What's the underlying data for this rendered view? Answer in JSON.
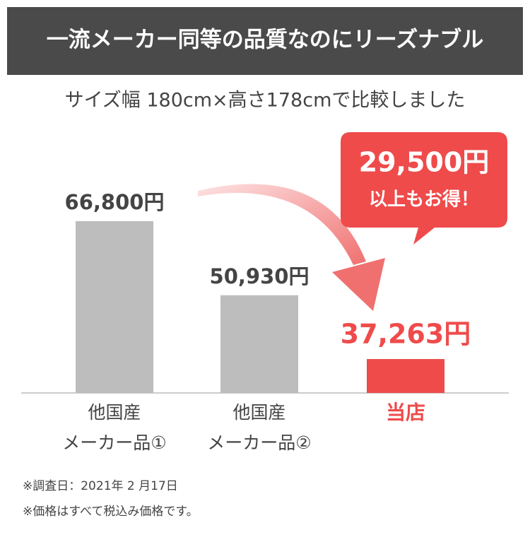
{
  "chart_data": {
    "type": "bar",
    "title": "一流メーカー同等の品質なのにリーズナブル",
    "subtitle": "サイズ幅 180cm×高さ178cmで比較しました",
    "categories": [
      [
        "他国産",
        "メーカー品①"
      ],
      [
        "他国産",
        "メーカー品②"
      ],
      [
        "当店"
      ]
    ],
    "values": [
      66800,
      50930,
      37263
    ],
    "value_labels": [
      "66,800円",
      "50,930円",
      "37,263円"
    ],
    "colors": [
      "#bdbdbd",
      "#bdbdbd",
      "#ef4b4b"
    ],
    "ylim": [
      30000,
      68000
    ],
    "annotations": [
      "29,500円",
      "以上もお得！"
    ],
    "notes": [
      "※調査日：2021年 2 月17日",
      "※価格はすべて税込み価格です。"
    ]
  }
}
